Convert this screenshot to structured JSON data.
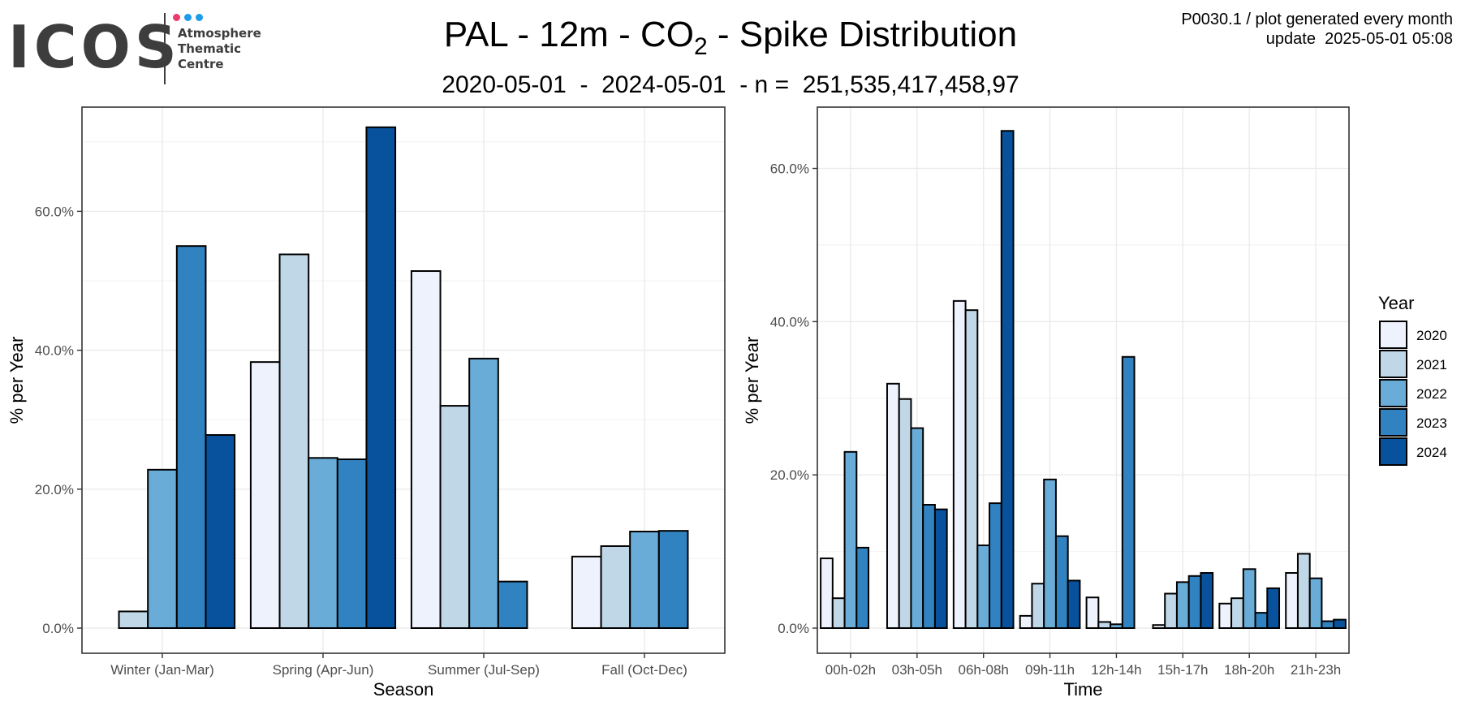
{
  "header": {
    "logo_text": "ICOS",
    "logo_subtitle": [
      "Atmosphere",
      "Thematic",
      "Centre"
    ],
    "logo_dot_colors": [
      "#e83e6c",
      "#1e9be9",
      "#1e9be9"
    ],
    "title_main": "PAL - 12m - CO",
    "title_sub": "2",
    "title_rest": " - Spike Distribution",
    "subtitle": "2020-05-01  -  2024-05-01  - n =  251,535,417,458,97",
    "meta_line1": "P0030.1 / plot generated every month",
    "meta_line2": "update  2025-05-01 05:08"
  },
  "chart_data": [
    {
      "type": "bar",
      "xlabel": "Season",
      "ylabel": "% per Year",
      "ylim": [
        0,
        75
      ],
      "yticks": [
        0,
        20,
        40,
        60
      ],
      "ytick_labels": [
        "0.0%",
        "20.0%",
        "40.0%",
        "60.0%"
      ],
      "grid": true,
      "categories": [
        "Winter (Jan-Mar)",
        "Spring (Apr-Jun)",
        "Summer (Jul-Sep)",
        "Fall (Oct-Dec)"
      ],
      "series": [
        {
          "name": "2020",
          "color": "#eef2fc",
          "values": [
            null,
            38.3,
            51.4,
            10.3
          ]
        },
        {
          "name": "2021",
          "color": "#c0d7e7",
          "values": [
            2.4,
            53.8,
            32.0,
            11.8
          ]
        },
        {
          "name": "2022",
          "color": "#69acd7",
          "values": [
            22.8,
            24.5,
            38.8,
            13.9
          ]
        },
        {
          "name": "2023",
          "color": "#3182c0",
          "values": [
            55.0,
            24.3,
            6.7,
            14.0
          ]
        },
        {
          "name": "2024",
          "color": "#08529d",
          "values": [
            27.8,
            72.1,
            null,
            null
          ]
        }
      ]
    },
    {
      "type": "bar",
      "xlabel": "Time",
      "ylabel": "% per Year",
      "ylim": [
        0,
        68
      ],
      "yticks": [
        0,
        20,
        40,
        60
      ],
      "ytick_labels": [
        "0.0%",
        "20.0%",
        "40.0%",
        "60.0%"
      ],
      "grid": true,
      "categories": [
        "00h-02h",
        "03h-05h",
        "06h-08h",
        "09h-11h",
        "12h-14h",
        "15h-17h",
        "18h-20h",
        "21h-23h"
      ],
      "series": [
        {
          "name": "2020",
          "color": "#eef2fc",
          "values": [
            9.1,
            31.9,
            42.7,
            1.6,
            4.0,
            0.4,
            3.2,
            7.2
          ]
        },
        {
          "name": "2021",
          "color": "#c0d7e7",
          "values": [
            3.9,
            29.9,
            41.5,
            5.8,
            0.8,
            4.5,
            3.9,
            9.7
          ]
        },
        {
          "name": "2022",
          "color": "#69acd7",
          "values": [
            23.0,
            26.1,
            10.8,
            19.4,
            0.5,
            6.0,
            7.7,
            6.5
          ]
        },
        {
          "name": "2023",
          "color": "#3182c0",
          "values": [
            10.5,
            16.1,
            16.3,
            12.0,
            35.4,
            6.8,
            2.0,
            0.9
          ]
        },
        {
          "name": "2024",
          "color": "#08529d",
          "values": [
            null,
            15.5,
            64.9,
            6.2,
            null,
            7.2,
            5.2,
            1.1
          ]
        }
      ]
    }
  ],
  "legend": {
    "title": "Year",
    "items": [
      {
        "label": "2020",
        "color": "#eef2fc"
      },
      {
        "label": "2021",
        "color": "#c0d7e7"
      },
      {
        "label": "2022",
        "color": "#69acd7"
      },
      {
        "label": "2023",
        "color": "#3182c0"
      },
      {
        "label": "2024",
        "color": "#08529d"
      }
    ]
  }
}
